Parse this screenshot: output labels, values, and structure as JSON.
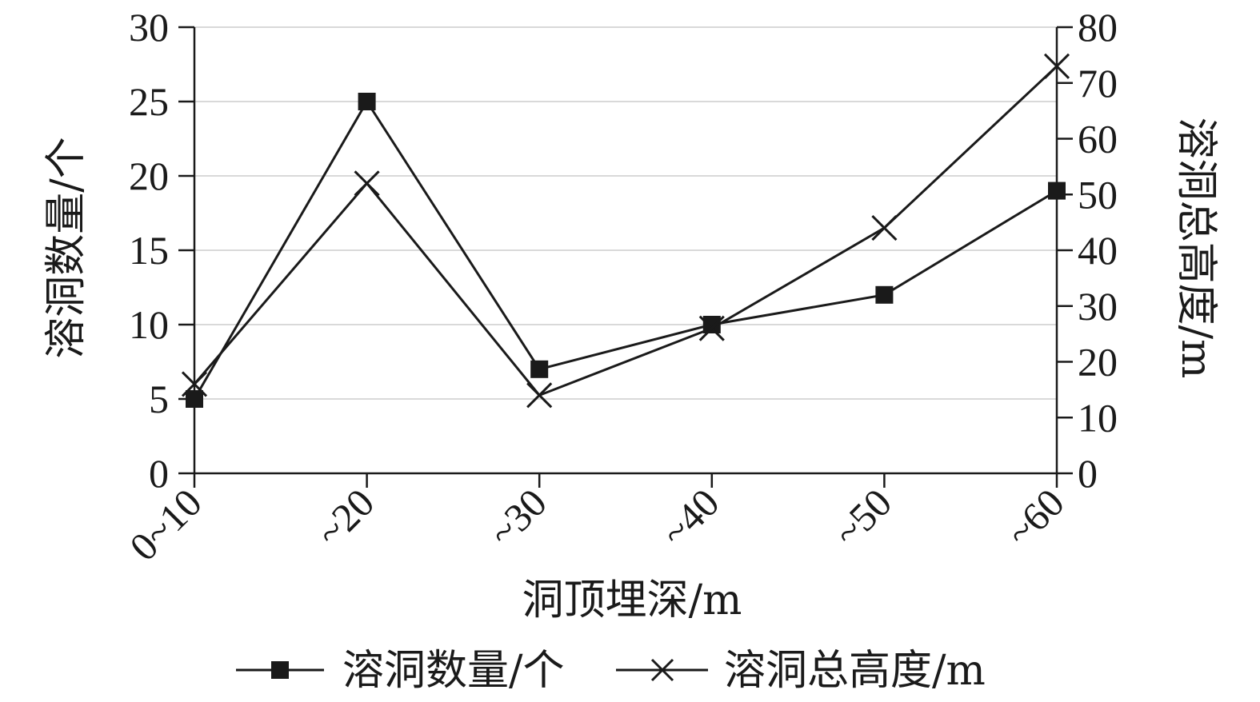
{
  "chart_data": {
    "type": "line",
    "categories": [
      "0~10",
      "~20",
      "~30",
      "~40",
      "~50",
      "~60"
    ],
    "xlabel": "洞顶埋深/m",
    "ylabel_left": "溶洞数量/个",
    "ylabel_right": "溶洞总高度/m",
    "ylim_left": [
      0,
      30
    ],
    "ylim_right": [
      0,
      80
    ],
    "yticks_left": [
      "0",
      "5",
      "10",
      "15",
      "20",
      "25",
      "30"
    ],
    "yticks_right": [
      "0",
      "10",
      "20",
      "30",
      "40",
      "50",
      "60",
      "70",
      "80"
    ],
    "grid": true,
    "legend_position": "bottom",
    "series": [
      {
        "name": "溶洞数量/个",
        "axis": "left",
        "marker": "square",
        "values": [
          5,
          25,
          7,
          10,
          12,
          19
        ]
      },
      {
        "name": "溶洞总高度/m",
        "axis": "right",
        "marker": "x",
        "values": [
          16,
          52,
          14,
          26,
          44,
          73
        ]
      }
    ],
    "colors": {
      "line": "#1a1a1a",
      "grid": "#d9d9d9"
    }
  }
}
